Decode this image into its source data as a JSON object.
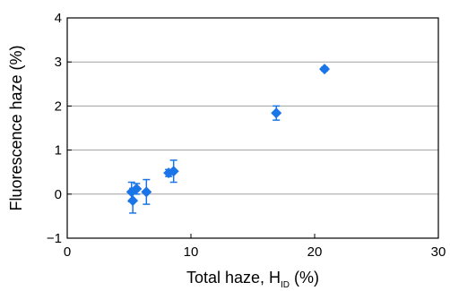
{
  "chart_data": {
    "type": "scatter",
    "title": "",
    "xlabel": "Total haze, H",
    "xlabel_subscript": "ID",
    "xlabel_suffix": " (%)",
    "ylabel": "Fluorescence haze (%)",
    "xlim": [
      0,
      30
    ],
    "ylim": [
      -1,
      4
    ],
    "xticks": [
      0,
      10,
      20,
      30
    ],
    "yticks": [
      -1,
      0,
      1,
      2,
      3,
      4
    ],
    "grid": "horizontal",
    "legend": "none",
    "marker": "diamond",
    "color": "#1a75e8",
    "series": [
      {
        "points": [
          {
            "x": 5.2,
            "y": 0.05,
            "yerr": 0.22
          },
          {
            "x": 5.3,
            "y": -0.15,
            "yerr": 0.28
          },
          {
            "x": 5.6,
            "y": 0.12,
            "yerr": 0.12
          },
          {
            "x": 6.4,
            "y": 0.05,
            "yerr": 0.28
          },
          {
            "x": 8.2,
            "y": 0.48,
            "yerr": 0.08
          },
          {
            "x": 8.6,
            "y": 0.52,
            "yerr": 0.25
          },
          {
            "x": 16.9,
            "y": 1.84,
            "yerr": 0.16
          },
          {
            "x": 20.8,
            "y": 2.84,
            "yerr": 0.04
          }
        ]
      }
    ]
  }
}
